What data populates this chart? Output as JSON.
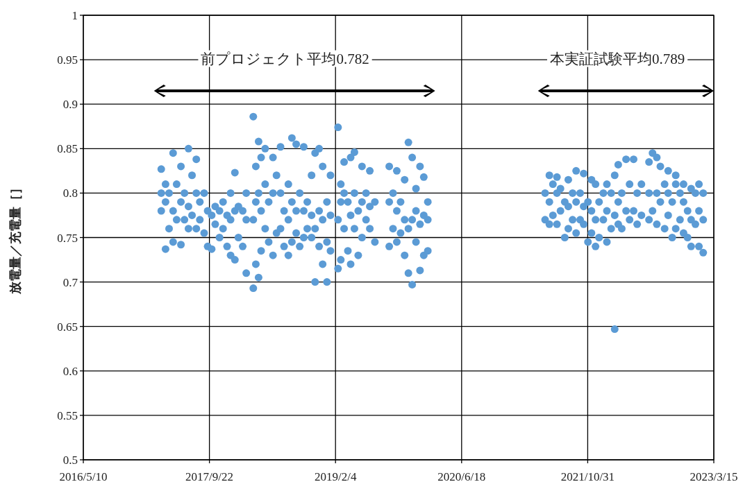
{
  "chart_data": {
    "type": "scatter",
    "ylabel": "放電量／充電量［］",
    "annotations": [
      "前プロジェクト平均0.782",
      "本実証試験平均0.789"
    ],
    "xlim": [
      "2016-05-10",
      "2023-03-15"
    ],
    "xticks": [
      {
        "value": "2016-05-10",
        "label": "2016/5/10"
      },
      {
        "value": "2017-09-22",
        "label": "2017/9/22"
      },
      {
        "value": "2019-02-04",
        "label": "2019/2/4"
      },
      {
        "value": "2020-06-18",
        "label": "2020/6/18"
      },
      {
        "value": "2021-10-31",
        "label": "2021/10/31"
      },
      {
        "value": "2023-03-15",
        "label": "2023/3/15"
      }
    ],
    "ylim": [
      0.5,
      1
    ],
    "yticks": [
      0.5,
      0.55,
      0.6,
      0.65,
      0.7,
      0.75,
      0.8,
      0.85,
      0.9,
      0.95,
      1
    ],
    "grid": true,
    "marker": "circle",
    "series": [
      {
        "color": "#5b9bd5",
        "x": [
          "2017-03-15",
          "2017-03-15",
          "2017-03-15",
          "2017-04-01",
          "2017-04-01",
          "2017-04-01",
          "2017-04-15",
          "2017-04-15",
          "2017-05-01",
          "2017-05-01",
          "2017-05-01",
          "2017-05-15",
          "2017-05-15",
          "2017-06-01",
          "2017-06-01",
          "2017-06-01",
          "2017-06-15",
          "2017-06-15",
          "2017-07-01",
          "2017-07-01",
          "2017-07-01",
          "2017-07-15",
          "2017-07-15",
          "2017-08-01",
          "2017-08-01",
          "2017-08-01",
          "2017-08-15",
          "2017-08-15",
          "2017-09-01",
          "2017-09-01",
          "2017-09-15",
          "2017-09-15",
          "2017-10-01",
          "2017-10-01",
          "2017-10-15",
          "2017-10-15",
          "2017-11-01",
          "2017-11-01",
          "2017-11-15",
          "2017-11-15",
          "2017-12-01",
          "2017-12-01",
          "2017-12-15",
          "2017-12-15",
          "2017-12-15",
          "2018-01-01",
          "2018-01-01",
          "2018-01-01",
          "2018-01-15",
          "2018-01-15",
          "2018-02-01",
          "2018-02-01",
          "2018-02-15",
          "2018-02-15",
          "2018-02-15",
          "2018-03-15",
          "2018-03-15",
          "2018-03-15",
          "2018-03-25",
          "2018-03-25",
          "2018-03-25",
          "2018-04-05",
          "2018-04-05",
          "2018-04-05",
          "2018-04-15",
          "2018-04-15",
          "2018-04-15",
          "2018-05-01",
          "2018-05-01",
          "2018-05-01",
          "2018-05-15",
          "2018-05-15",
          "2018-06-01",
          "2018-06-01",
          "2018-06-01",
          "2018-06-15",
          "2018-06-15",
          "2018-07-01",
          "2018-07-01",
          "2018-07-01",
          "2018-07-15",
          "2018-07-15",
          "2018-08-01",
          "2018-08-01",
          "2018-08-01",
          "2018-08-15",
          "2018-08-15",
          "2018-08-15",
          "2018-09-01",
          "2018-09-01",
          "2018-09-01",
          "2018-09-15",
          "2018-09-15",
          "2018-10-01",
          "2018-10-01",
          "2018-10-01",
          "2018-10-15",
          "2018-10-15",
          "2018-11-01",
          "2018-11-01",
          "2018-11-01",
          "2018-11-15",
          "2018-11-15",
          "2018-11-15",
          "2018-12-01",
          "2018-12-01",
          "2018-12-01",
          "2018-12-15",
          "2018-12-15",
          "2018-12-15",
          "2019-01-01",
          "2019-01-01",
          "2019-01-01",
          "2019-01-15",
          "2019-01-15",
          "2019-01-15",
          "2019-02-14",
          "2019-02-14",
          "2019-02-14",
          "2019-02-25",
          "2019-02-25",
          "2019-02-25",
          "2019-03-10",
          "2019-03-10",
          "2019-03-10",
          "2019-03-25",
          "2019-03-25",
          "2019-04-05",
          "2019-04-05",
          "2019-04-05",
          "2019-04-20",
          "2019-04-20",
          "2019-04-20",
          "2019-05-05",
          "2019-05-05",
          "2019-05-20",
          "2019-05-20",
          "2019-05-20",
          "2019-06-05",
          "2019-06-05",
          "2019-06-20",
          "2019-06-20",
          "2019-06-20",
          "2019-07-10",
          "2019-07-10",
          "2019-09-05",
          "2019-09-05",
          "2019-09-05",
          "2019-09-20",
          "2019-09-20",
          "2019-10-05",
          "2019-10-05",
          "2019-10-05",
          "2019-10-20",
          "2019-10-20",
          "2019-11-05",
          "2019-11-05",
          "2019-11-05",
          "2019-11-20",
          "2019-11-20",
          "2019-11-20",
          "2019-12-05",
          "2019-12-05",
          "2019-12-05",
          "2019-12-20",
          "2019-12-20",
          "2019-12-20",
          "2020-01-05",
          "2020-01-05",
          "2020-01-05",
          "2020-01-20",
          "2020-01-20",
          "2020-01-20",
          "2020-02-05",
          "2020-02-05",
          "2020-02-05",
          "2021-05-15",
          "2021-05-15",
          "2021-06-01",
          "2021-06-01",
          "2021-06-01",
          "2021-06-15",
          "2021-06-15",
          "2021-07-01",
          "2021-07-01",
          "2021-07-01",
          "2021-07-15",
          "2021-07-15",
          "2021-08-01",
          "2021-08-01",
          "2021-08-15",
          "2021-08-15",
          "2021-08-15",
          "2021-09-01",
          "2021-09-01",
          "2021-09-15",
          "2021-09-15",
          "2021-09-15",
          "2021-10-01",
          "2021-10-01",
          "2021-10-15",
          "2021-10-15",
          "2021-10-15",
          "2021-11-01",
          "2021-11-01",
          "2021-11-15",
          "2021-11-15",
          "2021-11-15",
          "2021-12-01",
          "2021-12-01",
          "2021-12-01",
          "2021-12-15",
          "2021-12-15",
          "2022-01-01",
          "2022-01-01",
          "2022-01-15",
          "2022-01-15",
          "2022-01-15",
          "2022-02-01",
          "2022-02-01",
          "2022-02-15",
          "2022-02-15",
          "2022-02-15",
          "2022-03-01",
          "2022-03-01",
          "2022-03-01",
          "2022-03-15",
          "2022-03-15",
          "2022-04-01",
          "2022-04-01",
          "2022-04-15",
          "2022-04-15",
          "2022-05-01",
          "2022-05-01",
          "2022-05-15",
          "2022-05-15",
          "2022-06-01",
          "2022-06-01",
          "2022-07-01",
          "2022-07-01",
          "2022-07-01",
          "2022-07-15",
          "2022-07-15",
          "2022-08-01",
          "2022-08-01",
          "2022-08-01",
          "2022-08-15",
          "2022-08-15",
          "2022-09-01",
          "2022-09-01",
          "2022-09-15",
          "2022-09-15",
          "2022-09-15",
          "2022-10-01",
          "2022-10-01",
          "2022-10-15",
          "2022-10-15",
          "2022-10-15",
          "2022-11-01",
          "2022-11-01",
          "2022-11-15",
          "2022-11-15",
          "2022-11-15",
          "2022-12-01",
          "2022-12-01",
          "2022-12-15",
          "2022-12-15",
          "2022-12-15",
          "2023-01-01",
          "2023-01-01",
          "2023-01-15",
          "2023-01-15",
          "2023-01-15",
          "2023-02-01",
          "2023-02-01",
          "2023-02-01"
        ],
        "values": [
          0.78,
          0.8,
          0.827,
          0.737,
          0.79,
          0.81,
          0.76,
          0.8,
          0.745,
          0.78,
          0.845,
          0.77,
          0.81,
          0.742,
          0.79,
          0.83,
          0.77,
          0.8,
          0.76,
          0.785,
          0.85,
          0.775,
          0.82,
          0.76,
          0.8,
          0.838,
          0.77,
          0.79,
          0.755,
          0.8,
          0.74,
          0.78,
          0.737,
          0.775,
          0.765,
          0.785,
          0.75,
          0.78,
          0.76,
          0.79,
          0.74,
          0.775,
          0.73,
          0.77,
          0.8,
          0.725,
          0.78,
          0.823,
          0.75,
          0.785,
          0.74,
          0.78,
          0.71,
          0.77,
          0.8,
          0.693,
          0.77,
          0.886,
          0.72,
          0.79,
          0.83,
          0.705,
          0.8,
          0.858,
          0.735,
          0.78,
          0.84,
          0.76,
          0.81,
          0.85,
          0.745,
          0.79,
          0.73,
          0.8,
          0.84,
          0.755,
          0.82,
          0.76,
          0.8,
          0.852,
          0.74,
          0.78,
          0.73,
          0.77,
          0.81,
          0.745,
          0.79,
          0.862,
          0.755,
          0.78,
          0.855,
          0.74,
          0.8,
          0.75,
          0.78,
          0.852,
          0.76,
          0.79,
          0.75,
          0.775,
          0.82,
          0.7,
          0.76,
          0.845,
          0.74,
          0.78,
          0.85,
          0.72,
          0.77,
          0.83,
          0.7,
          0.745,
          0.79,
          0.735,
          0.775,
          0.82,
          0.715,
          0.77,
          0.874,
          0.725,
          0.79,
          0.81,
          0.76,
          0.8,
          0.835,
          0.735,
          0.79,
          0.72,
          0.775,
          0.84,
          0.76,
          0.8,
          0.846,
          0.73,
          0.78,
          0.75,
          0.79,
          0.83,
          0.77,
          0.8,
          0.76,
          0.785,
          0.825,
          0.745,
          0.79,
          0.74,
          0.79,
          0.83,
          0.76,
          0.8,
          0.745,
          0.78,
          0.825,
          0.755,
          0.79,
          0.73,
          0.77,
          0.815,
          0.71,
          0.76,
          0.857,
          0.697,
          0.77,
          0.84,
          0.745,
          0.78,
          0.805,
          0.713,
          0.765,
          0.83,
          0.73,
          0.775,
          0.818,
          0.735,
          0.77,
          0.79,
          0.77,
          0.8,
          0.765,
          0.79,
          0.82,
          0.775,
          0.81,
          0.765,
          0.8,
          0.818,
          0.78,
          0.805,
          0.75,
          0.79,
          0.76,
          0.785,
          0.815,
          0.77,
          0.8,
          0.755,
          0.79,
          0.825,
          0.77,
          0.8,
          0.765,
          0.785,
          0.822,
          0.745,
          0.79,
          0.755,
          0.78,
          0.815,
          0.74,
          0.77,
          0.81,
          0.75,
          0.79,
          0.77,
          0.8,
          0.745,
          0.78,
          0.81,
          0.76,
          0.8,
          0.647,
          0.775,
          0.82,
          0.765,
          0.79,
          0.832,
          0.76,
          0.8,
          0.78,
          0.838,
          0.77,
          0.81,
          0.78,
          0.838,
          0.765,
          0.8,
          0.775,
          0.81,
          0.77,
          0.8,
          0.835,
          0.78,
          0.845,
          0.765,
          0.8,
          0.84,
          0.79,
          0.83,
          0.76,
          0.81,
          0.775,
          0.8,
          0.825,
          0.75,
          0.79,
          0.76,
          0.81,
          0.82,
          0.77,
          0.8,
          0.755,
          0.79,
          0.81,
          0.75,
          0.78,
          0.74,
          0.77,
          0.805,
          0.765,
          0.8,
          0.74,
          0.78,
          0.81,
          0.733,
          0.77,
          0.8
        ]
      }
    ]
  }
}
